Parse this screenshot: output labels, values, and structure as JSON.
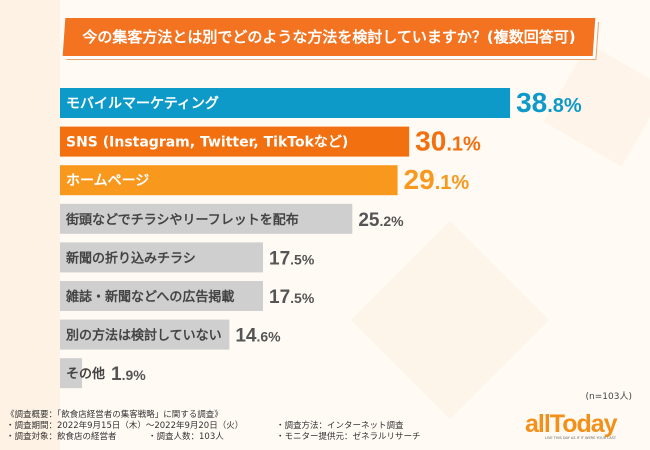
{
  "title": "今の集客方法とは別でどのような方法を検討していますか？(複数回答可)",
  "chart_data": {
    "type": "bar",
    "orientation": "horizontal",
    "title": "今の集客方法とは別でどのような方法を検討していますか？(複数回答可)",
    "categories": [
      "モバイルマーケティング",
      "SNS (Instagram, Twitter, TikTokなど)",
      "ホームページ",
      "街頭などでチラシやリーフレットを配布",
      "新聞の折り込みチラシ",
      "雑誌・新聞などへの広告掲載",
      "別の方法は検討していない",
      "その他"
    ],
    "values": [
      38.8,
      30.1,
      29.1,
      25.2,
      17.5,
      17.5,
      14.6,
      1.9
    ],
    "unit": "%",
    "colors": [
      "#0e9ac8",
      "#f2700f",
      "#f8981d",
      "#cfcfcf",
      "#cfcfcf",
      "#cfcfcf",
      "#cfcfcf",
      "#cfcfcf"
    ],
    "label_colors": [
      "#ffffff",
      "#ffffff",
      "#ffffff",
      "#444444",
      "#444444",
      "#444444",
      "#444444",
      "#444444"
    ],
    "value_colors": [
      "#0e9ac8",
      "#f2700f",
      "#f8981d",
      "#555555",
      "#555555",
      "#555555",
      "#555555",
      "#555555"
    ],
    "grid": false
  },
  "sample": "(n=103人)",
  "notes": {
    "heading": "《調査概要：「飲食店経営者の集客戦略」に関する調査》",
    "period": "・調査期間：2022年9月15日（木）～2022年9月20日（火）",
    "target": "・調査対象：飲食店の経営者",
    "count": "・調査人数：103人",
    "method": "・調査方法：インターネット調査",
    "provider": "・モニター提供元：ゼネラルリサーチ"
  },
  "logo": {
    "text": "allToday",
    "tagline": "LIVE THIS DAY AS IF IT WERE YOUR LAST"
  }
}
